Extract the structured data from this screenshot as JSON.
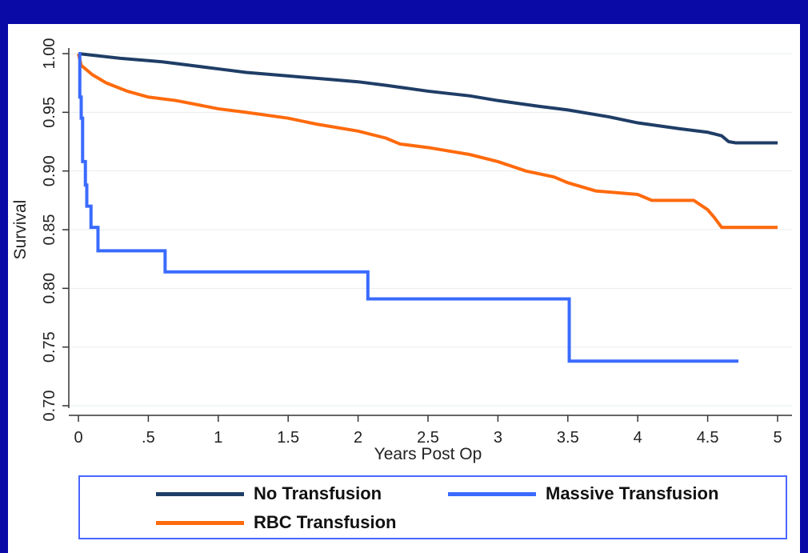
{
  "chart_data": {
    "type": "line",
    "title": "",
    "xlabel": "Years Post Op",
    "ylabel": "Survival",
    "xlim": [
      0,
      5
    ],
    "ylim": [
      0.7,
      1.0
    ],
    "x_ticks": [
      0,
      0.5,
      1,
      1.5,
      2,
      2.5,
      3,
      3.5,
      4,
      4.5,
      5
    ],
    "x_tick_labels": [
      "0",
      ".5",
      "1",
      "1.5",
      "2",
      "2.5",
      "3",
      "3.5",
      "4",
      "4.5",
      "5"
    ],
    "y_ticks": [
      0.7,
      0.75,
      0.8,
      0.85,
      0.9,
      0.95,
      1.0
    ],
    "y_tick_labels": [
      "0.70",
      "0.75",
      "0.80",
      "0.85",
      "0.90",
      "0.95",
      "1.00"
    ],
    "grid": "horizontal",
    "legend_position": "bottom",
    "series": [
      {
        "name": "No Transfusion",
        "color": "#1f3d66",
        "points": [
          [
            0,
            1.0
          ],
          [
            0.3,
            0.996
          ],
          [
            0.5,
            0.994
          ],
          [
            0.6,
            0.993
          ],
          [
            0.8,
            0.99
          ],
          [
            1.0,
            0.987
          ],
          [
            1.2,
            0.984
          ],
          [
            1.5,
            0.981
          ],
          [
            1.8,
            0.978
          ],
          [
            2.0,
            0.976
          ],
          [
            2.2,
            0.973
          ],
          [
            2.5,
            0.968
          ],
          [
            2.8,
            0.964
          ],
          [
            3.0,
            0.96
          ],
          [
            3.3,
            0.955
          ],
          [
            3.5,
            0.952
          ],
          [
            3.8,
            0.946
          ],
          [
            4.0,
            0.941
          ],
          [
            4.3,
            0.936
          ],
          [
            4.5,
            0.933
          ],
          [
            4.6,
            0.93
          ],
          [
            4.65,
            0.925
          ],
          [
            4.7,
            0.924
          ],
          [
            5.0,
            0.924
          ]
        ]
      },
      {
        "name": "RBC Transfusion",
        "color": "#ff6a0d",
        "points": [
          [
            0,
            1.0
          ],
          [
            0.02,
            0.99
          ],
          [
            0.1,
            0.982
          ],
          [
            0.2,
            0.975
          ],
          [
            0.35,
            0.968
          ],
          [
            0.5,
            0.963
          ],
          [
            0.7,
            0.96
          ],
          [
            1.0,
            0.953
          ],
          [
            1.2,
            0.95
          ],
          [
            1.5,
            0.945
          ],
          [
            1.7,
            0.94
          ],
          [
            2.0,
            0.934
          ],
          [
            2.2,
            0.928
          ],
          [
            2.3,
            0.923
          ],
          [
            2.5,
            0.92
          ],
          [
            2.8,
            0.914
          ],
          [
            3.0,
            0.908
          ],
          [
            3.2,
            0.9
          ],
          [
            3.4,
            0.895
          ],
          [
            3.5,
            0.89
          ],
          [
            3.7,
            0.883
          ],
          [
            4.0,
            0.88
          ],
          [
            4.1,
            0.875
          ],
          [
            4.4,
            0.875
          ],
          [
            4.5,
            0.867
          ],
          [
            4.55,
            0.86
          ],
          [
            4.6,
            0.852
          ],
          [
            5.0,
            0.852
          ]
        ]
      },
      {
        "name": "Massive Transfusion",
        "color": "#3a6bff",
        "step": true,
        "points": [
          [
            0,
            1.0
          ],
          [
            0.01,
            0.963
          ],
          [
            0.02,
            0.945
          ],
          [
            0.03,
            0.908
          ],
          [
            0.05,
            0.888
          ],
          [
            0.06,
            0.87
          ],
          [
            0.09,
            0.852
          ],
          [
            0.14,
            0.832
          ],
          [
            0.62,
            0.814
          ],
          [
            2.07,
            0.791
          ],
          [
            3.51,
            0.738
          ],
          [
            4.72,
            0.738
          ]
        ]
      }
    ]
  }
}
